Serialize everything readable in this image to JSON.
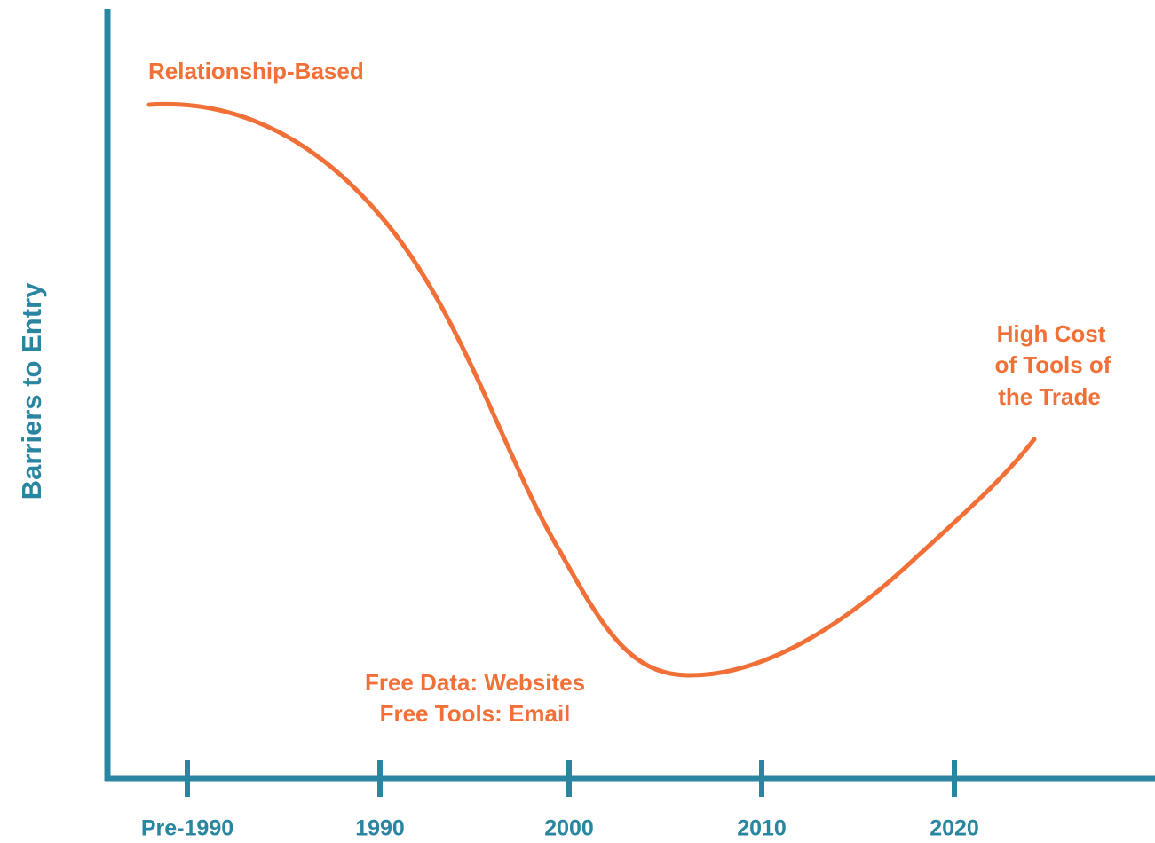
{
  "y_axis_label": "Barriers to Entry",
  "x_axis_labels": [
    "Pre-1990",
    "1990",
    "2000",
    "2010",
    "2020"
  ],
  "annotations": {
    "start": "Relationship-Based",
    "end": [
      "High Cost",
      "of Tools of",
      "the Trade"
    ],
    "low": [
      "Free Data: Websites",
      "Free Tools: Email"
    ]
  }
}
